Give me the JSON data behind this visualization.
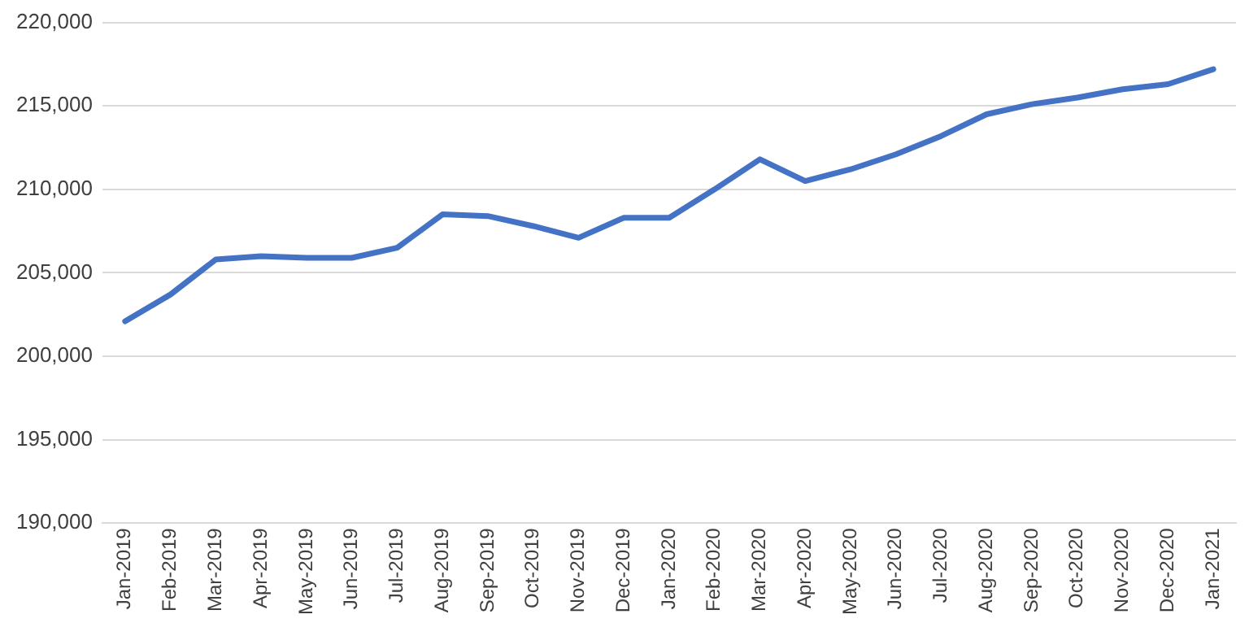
{
  "chart_data": {
    "type": "line",
    "categories": [
      "Jan-2019",
      "Feb-2019",
      "Mar-2019",
      "Apr-2019",
      "May-2019",
      "Jun-2019",
      "Jul-2019",
      "Aug-2019",
      "Sep-2019",
      "Oct-2019",
      "Nov-2019",
      "Dec-2019",
      "Jan-2020",
      "Feb-2020",
      "Mar-2020",
      "Apr-2020",
      "May-2020",
      "Jun-2020",
      "Jul-2020",
      "Aug-2020",
      "Sep-2020",
      "Oct-2020",
      "Nov-2020",
      "Dec-2020",
      "Jan-2021"
    ],
    "series": [
      {
        "color": "#4472c4",
        "values": [
          202100,
          203700,
          205800,
          206000,
          205900,
          205900,
          206500,
          208500,
          208400,
          207800,
          207100,
          208300,
          208300,
          210000,
          211800,
          210500,
          211200,
          212100,
          213200,
          214500,
          215100,
          215500,
          216000,
          216300,
          217200
        ]
      }
    ],
    "ylim": [
      190000,
      220000
    ],
    "yticks": [
      {
        "value": 190000,
        "label": "190,000"
      },
      {
        "value": 195000,
        "label": "195,000"
      },
      {
        "value": 200000,
        "label": "200,000"
      },
      {
        "value": 205000,
        "label": "205,000"
      },
      {
        "value": 210000,
        "label": "210,000"
      },
      {
        "value": 215000,
        "label": "215,000"
      },
      {
        "value": 220000,
        "label": "220,000"
      }
    ],
    "grid": "y",
    "legend": false,
    "marker": "none",
    "line_style": "solid"
  }
}
